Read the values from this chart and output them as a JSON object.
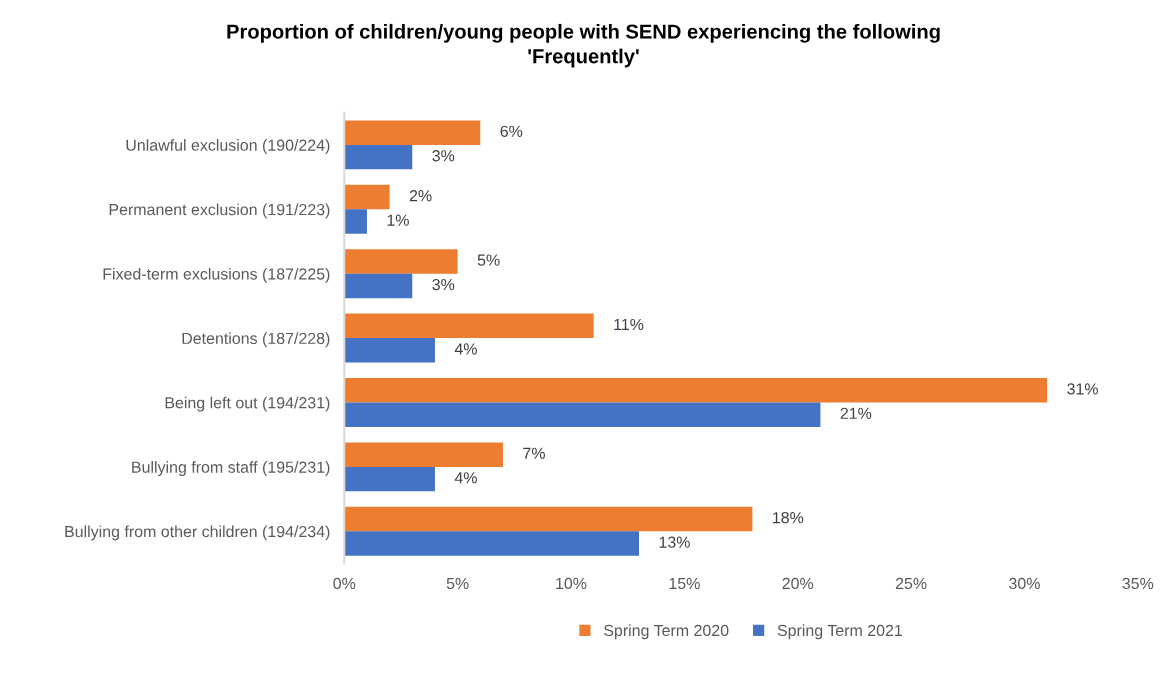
{
  "chart_data": {
    "type": "bar",
    "orientation": "horizontal",
    "title": "Proportion of children/young people with SEND experiencing the following\n'Frequently'",
    "categories": [
      "Unlawful exclusion (190/224)",
      "Permanent exclusion (191/223)",
      "Fixed-term exclusions (187/225)",
      "Detentions (187/228)",
      "Being left out (194/231)",
      "Bullying from staff (195/231)",
      "Bullying from other children (194/234)"
    ],
    "series": [
      {
        "name": "Spring Term 2020",
        "color": "#ed7d31",
        "values": [
          6,
          2,
          5,
          11,
          31,
          7,
          18
        ],
        "value_labels": [
          "6%",
          "2%",
          "5%",
          "11%",
          "31%",
          "7%",
          "18%"
        ]
      },
      {
        "name": "Spring Term 2021",
        "color": "#4472c4",
        "values": [
          3,
          1,
          3,
          4,
          21,
          4,
          13
        ],
        "value_labels": [
          "3%",
          "1%",
          "3%",
          "4%",
          "21%",
          "4%",
          "13%"
        ]
      }
    ],
    "xlim": [
      0,
      35
    ],
    "xticks": [
      {
        "value": 0,
        "label": "0%"
      },
      {
        "value": 5,
        "label": "5%"
      },
      {
        "value": 10,
        "label": "10%"
      },
      {
        "value": 15,
        "label": "15%"
      },
      {
        "value": 20,
        "label": "20%"
      },
      {
        "value": 25,
        "label": "25%"
      },
      {
        "value": 30,
        "label": "30%"
      },
      {
        "value": 35,
        "label": "35%"
      }
    ],
    "grid": false,
    "legend": "bottom"
  }
}
